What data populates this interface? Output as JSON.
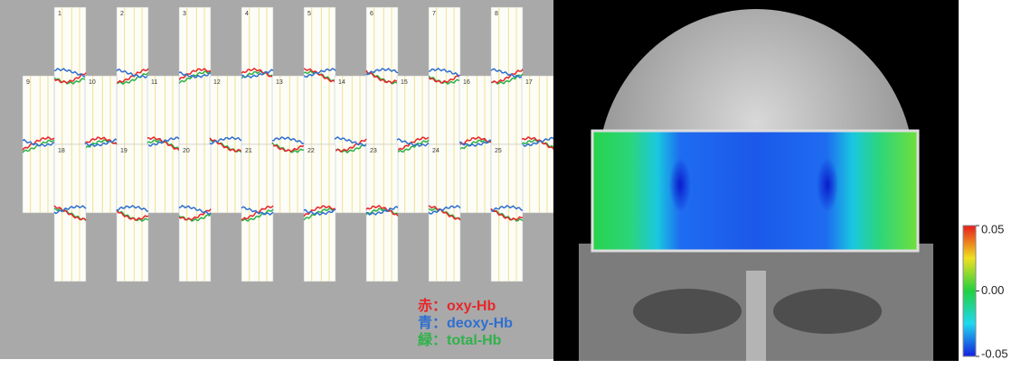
{
  "channels": [
    "1",
    "2",
    "3",
    "4",
    "5",
    "6",
    "7",
    "8",
    "9",
    "10",
    "11",
    "12",
    "13",
    "14",
    "15",
    "16",
    "17",
    "18",
    "19",
    "20",
    "21",
    "22",
    "23",
    "24",
    "25"
  ],
  "legend": [
    {
      "text": "赤：oxy-Hb",
      "color": "#e8262a"
    },
    {
      "text": "青：deoxy-Hb",
      "color": "#2f6fd0"
    },
    {
      "text": "緑：total-Hb",
      "color": "#2fb24a"
    }
  ],
  "colorbar": {
    "range": [
      -0.05,
      0.05
    ],
    "ticks": [
      {
        "value": 0.05,
        "label": "0.05"
      },
      {
        "value": 0,
        "label": "0.00"
      },
      {
        "value": -0.05,
        "label": "-0.05"
      }
    ]
  }
}
